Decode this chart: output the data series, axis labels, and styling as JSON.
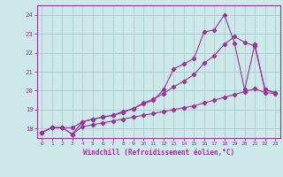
{
  "bg_color": "#cce8e8",
  "line_color": "#993399",
  "grid_color": "#aacccc",
  "xlabel": "Windchill (Refroidissement éolien,°C)",
  "xlabel_color": "#993399",
  "tick_color": "#993399",
  "xlim": [
    -0.5,
    23.5
  ],
  "ylim": [
    17.5,
    24.5
  ],
  "yticks": [
    18,
    19,
    20,
    21,
    22,
    23,
    24
  ],
  "xticks": [
    0,
    1,
    2,
    3,
    4,
    5,
    6,
    7,
    8,
    9,
    10,
    11,
    12,
    13,
    14,
    15,
    16,
    17,
    18,
    19,
    20,
    21,
    22,
    23
  ],
  "line1_x": [
    0,
    1,
    2,
    3,
    4,
    5,
    6,
    7,
    8,
    9,
    10,
    11,
    12,
    13,
    14,
    15,
    16,
    17,
    18,
    19,
    20,
    21,
    22,
    23
  ],
  "line1_y": [
    17.8,
    18.05,
    18.05,
    17.7,
    18.1,
    18.2,
    18.3,
    18.4,
    18.5,
    18.6,
    18.7,
    18.8,
    18.9,
    19.0,
    19.1,
    19.2,
    19.35,
    19.5,
    19.65,
    19.8,
    19.95,
    20.1,
    19.9,
    19.85
  ],
  "line2_x": [
    0,
    1,
    2,
    3,
    4,
    5,
    6,
    7,
    8,
    9,
    10,
    11,
    12,
    13,
    14,
    15,
    16,
    17,
    18,
    19,
    20,
    21,
    22,
    23
  ],
  "line2_y": [
    17.8,
    18.05,
    18.05,
    17.7,
    18.35,
    18.5,
    18.6,
    18.7,
    18.85,
    19.05,
    19.3,
    19.5,
    20.05,
    21.15,
    21.4,
    21.7,
    23.1,
    23.2,
    24.0,
    22.5,
    20.05,
    22.45,
    20.05,
    19.9
  ],
  "line3_x": [
    0,
    1,
    2,
    3,
    4,
    5,
    6,
    7,
    8,
    9,
    10,
    11,
    12,
    13,
    14,
    15,
    16,
    17,
    18,
    19,
    20,
    21,
    22,
    23
  ],
  "line3_y": [
    17.8,
    18.05,
    18.05,
    18.05,
    18.35,
    18.5,
    18.6,
    18.7,
    18.9,
    19.05,
    19.35,
    19.55,
    19.85,
    20.2,
    20.5,
    20.85,
    21.45,
    21.85,
    22.45,
    22.85,
    22.55,
    22.35,
    20.05,
    19.9
  ]
}
